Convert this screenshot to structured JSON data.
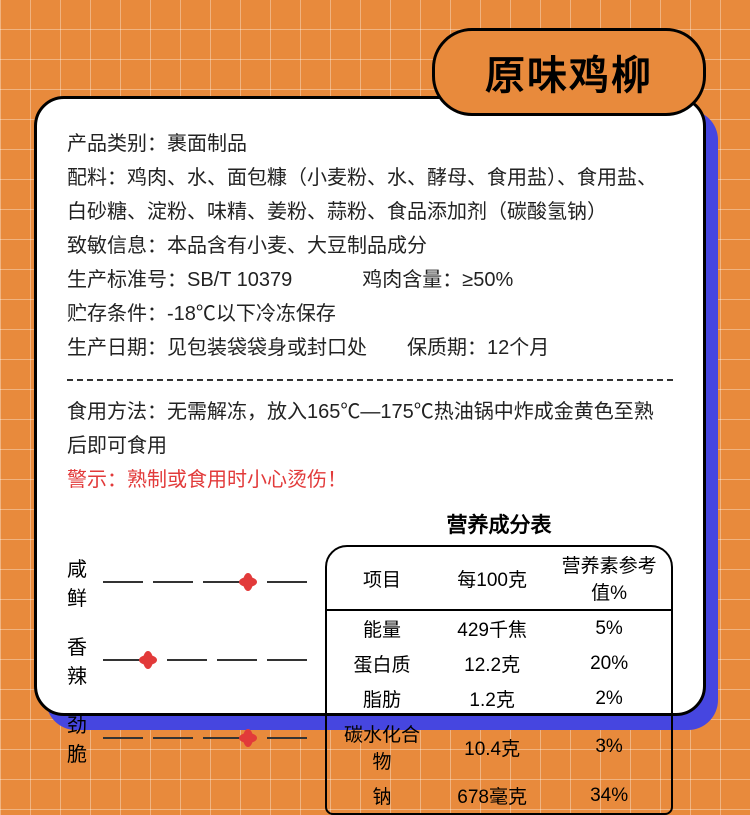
{
  "title": "原味鸡柳",
  "info": {
    "category_label": "产品类别：",
    "category": "裹面制品",
    "ingredients_label": "配料：",
    "ingredients": "鸡肉、水、面包糠（小麦粉、水、酵母、食用盐）、食用盐、白砂糖、淀粉、味精、姜粉、蒜粉、食品添加剂（碳酸氢钠）",
    "allergen_label": "致敏信息：",
    "allergen": "本品含有小麦、大豆制品成分",
    "standard_label": "生产标准号：",
    "standard": "SB/T 10379",
    "chicken_label": "鸡肉含量：",
    "chicken": "≥50%",
    "storage_label": "贮存条件：",
    "storage": "-18℃以下冷冻保存",
    "mfg_label": "生产日期：",
    "mfg": "见包装袋袋身或封口处",
    "shelf_label": "保质期：",
    "shelf": "12个月",
    "method_label": "食用方法：",
    "method": "无需解冻，放入165℃—175℃热油锅中炸成金黄色至熟后即可食用",
    "warning_label": "警示：",
    "warning": "熟制或食用时小心烫伤！"
  },
  "flavor": {
    "rows": [
      {
        "label": "咸鲜",
        "level": 3
      },
      {
        "label": "香辣",
        "level": 1
      },
      {
        "label": "劲脆",
        "level": 3
      }
    ],
    "segments": 4,
    "seg_color": "#333333",
    "flower_color": "#e23a3a"
  },
  "nutrition": {
    "title": "营养成分表",
    "headers": [
      "项目",
      "每100克",
      "营养素参考值%"
    ],
    "rows": [
      [
        "能量",
        "429千焦",
        "5%"
      ],
      [
        "蛋白质",
        "12.2克",
        "20%"
      ],
      [
        "脂肪",
        "1.2克",
        "2%"
      ],
      [
        "碳水化合物",
        "10.4克",
        "3%"
      ],
      [
        "钠",
        "678毫克",
        "34%"
      ]
    ]
  },
  "colors": {
    "bg": "#e88a3c",
    "card_bg": "#ffffff",
    "border": "#000000",
    "shadow": "#4646e0",
    "warning": "#e23a3a",
    "text": "#222222"
  }
}
